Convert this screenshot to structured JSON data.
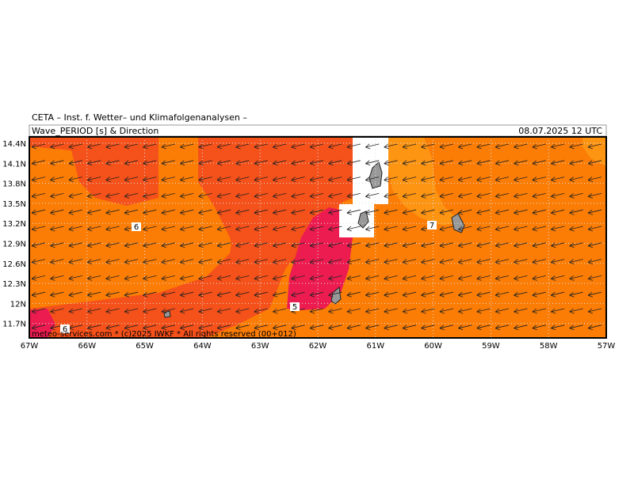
{
  "header": {
    "title": "CETA – Inst. f. Wetter– und Klimafolgenanalysen –",
    "parameter": "Wave_PERIOD [s] & Direction",
    "valid_time": "08.07.2025 12 UTC"
  },
  "axes": {
    "lat_labels": [
      "14.4N",
      "14.1N",
      "13.8N",
      "13.5N",
      "13.2N",
      "12.9N",
      "12.6N",
      "12.3N",
      "12N",
      "11.7N"
    ],
    "lon_labels": [
      "67W",
      "66W",
      "65W",
      "64W",
      "63W",
      "62W",
      "61W",
      "60W",
      "59W",
      "58W",
      "57W"
    ]
  },
  "contour_labels": [
    "6",
    "7",
    "5",
    "6"
  ],
  "footer": "meteo-services.com * (c)2025 IWKF * All rights reserved (00+012)"
}
